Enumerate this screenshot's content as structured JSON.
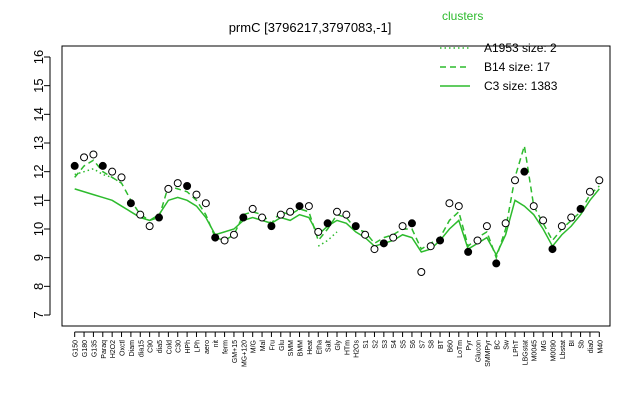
{
  "chart_data": {
    "type": "line",
    "title": "prmC [3796217,3797083,-1]",
    "legend_title": "clusters",
    "categories": [
      "G150",
      "G180",
      "G135",
      "Paraq",
      "H2O2",
      "Oxctl",
      "Diam",
      "dia15",
      "C90",
      "dia5",
      "Cold",
      "C30",
      "HPh",
      "LPh",
      "aero",
      "nit",
      "ferm",
      "GM+15",
      "MG+120",
      "M/G",
      "Mal",
      "Fru",
      "Glu",
      "SMM",
      "BMM",
      "Heat",
      "Etha",
      "Salt",
      "Gly",
      "HTm",
      "H2Os",
      "S1",
      "S2",
      "S3",
      "S4",
      "S5",
      "S6",
      "S7",
      "S8",
      "BT",
      "B60",
      "LoTm",
      "Pyr",
      "Glucon",
      "SMMPyr",
      "BC",
      "Sw",
      "LPhT",
      "LBGstat",
      "M0045",
      "MG",
      "M0090",
      "Lbstat",
      "BI",
      "Sb",
      "dia0",
      "M40"
    ],
    "series": [
      {
        "name": "A1953 size: 2",
        "color": "#2dbb2d",
        "style": "dotted",
        "values": [
          11.9,
          12.0,
          12.1,
          11.9,
          11.8,
          11.6,
          null,
          null,
          null,
          null,
          null,
          null,
          null,
          null,
          null,
          null,
          null,
          null,
          null,
          null,
          null,
          null,
          null,
          null,
          null,
          null,
          9.4,
          9.6,
          9.9,
          null,
          null,
          null,
          null,
          null,
          null,
          null,
          null,
          null,
          null,
          null,
          null,
          null,
          null,
          null,
          null,
          null,
          null,
          null,
          null,
          null,
          null,
          null,
          null,
          null,
          null,
          null,
          null
        ]
      },
      {
        "name": "B14 size: 17",
        "color": "#2dbb2d",
        "style": "dashed",
        "values": [
          11.8,
          12.2,
          12.4,
          12.0,
          11.8,
          11.6,
          11.0,
          10.5,
          10.3,
          10.4,
          11.5,
          11.4,
          11.3,
          11.0,
          10.5,
          9.7,
          9.6,
          9.8,
          10.5,
          10.6,
          10.5,
          10.2,
          10.6,
          10.5,
          10.7,
          10.6,
          9.6,
          10.0,
          10.5,
          10.4,
          10.0,
          9.9,
          9.5,
          9.7,
          9.8,
          10.0,
          10.0,
          9.3,
          9.5,
          9.7,
          10.3,
          10.6,
          9.4,
          9.7,
          9.9,
          9.0,
          10.0,
          11.8,
          12.9,
          10.8,
          10.2,
          9.6,
          10.0,
          10.3,
          10.6,
          11.2,
          11.5
        ]
      },
      {
        "name": "C3 size: 1383",
        "color": "#2dbb2d",
        "style": "solid",
        "values": [
          11.4,
          11.3,
          11.2,
          11.1,
          11.0,
          10.8,
          10.6,
          10.4,
          10.3,
          10.5,
          11.0,
          11.1,
          11.0,
          10.8,
          10.4,
          9.8,
          9.9,
          10.0,
          10.3,
          10.4,
          10.3,
          10.2,
          10.4,
          10.3,
          10.5,
          10.4,
          9.8,
          10.1,
          10.3,
          10.2,
          9.9,
          9.7,
          9.4,
          9.5,
          9.6,
          9.8,
          9.7,
          9.2,
          9.3,
          9.6,
          10.0,
          10.3,
          9.3,
          9.5,
          9.7,
          9.1,
          9.8,
          11.0,
          10.8,
          10.5,
          10.0,
          9.4,
          9.8,
          10.1,
          10.5,
          11.0,
          11.4
        ]
      }
    ],
    "points": [
      12.2,
      12.5,
      12.6,
      12.2,
      12.0,
      11.8,
      10.9,
      10.5,
      10.1,
      10.4,
      11.4,
      11.6,
      11.5,
      11.2,
      10.9,
      9.7,
      9.6,
      9.8,
      10.4,
      10.7,
      10.4,
      10.1,
      10.5,
      10.6,
      10.8,
      10.8,
      9.9,
      10.2,
      10.6,
      10.5,
      10.1,
      9.8,
      9.3,
      9.5,
      9.7,
      10.1,
      10.2,
      8.5,
      9.4,
      9.6,
      10.9,
      10.8,
      9.2,
      9.6,
      10.1,
      8.8,
      10.2,
      11.7,
      12.0,
      10.8,
      10.3,
      9.3,
      10.1,
      10.4,
      10.7,
      11.3,
      11.7
    ],
    "ylim": [
      7,
      16
    ],
    "yticks": [
      7,
      8,
      9,
      10,
      11,
      12,
      13,
      14,
      15,
      16
    ]
  }
}
